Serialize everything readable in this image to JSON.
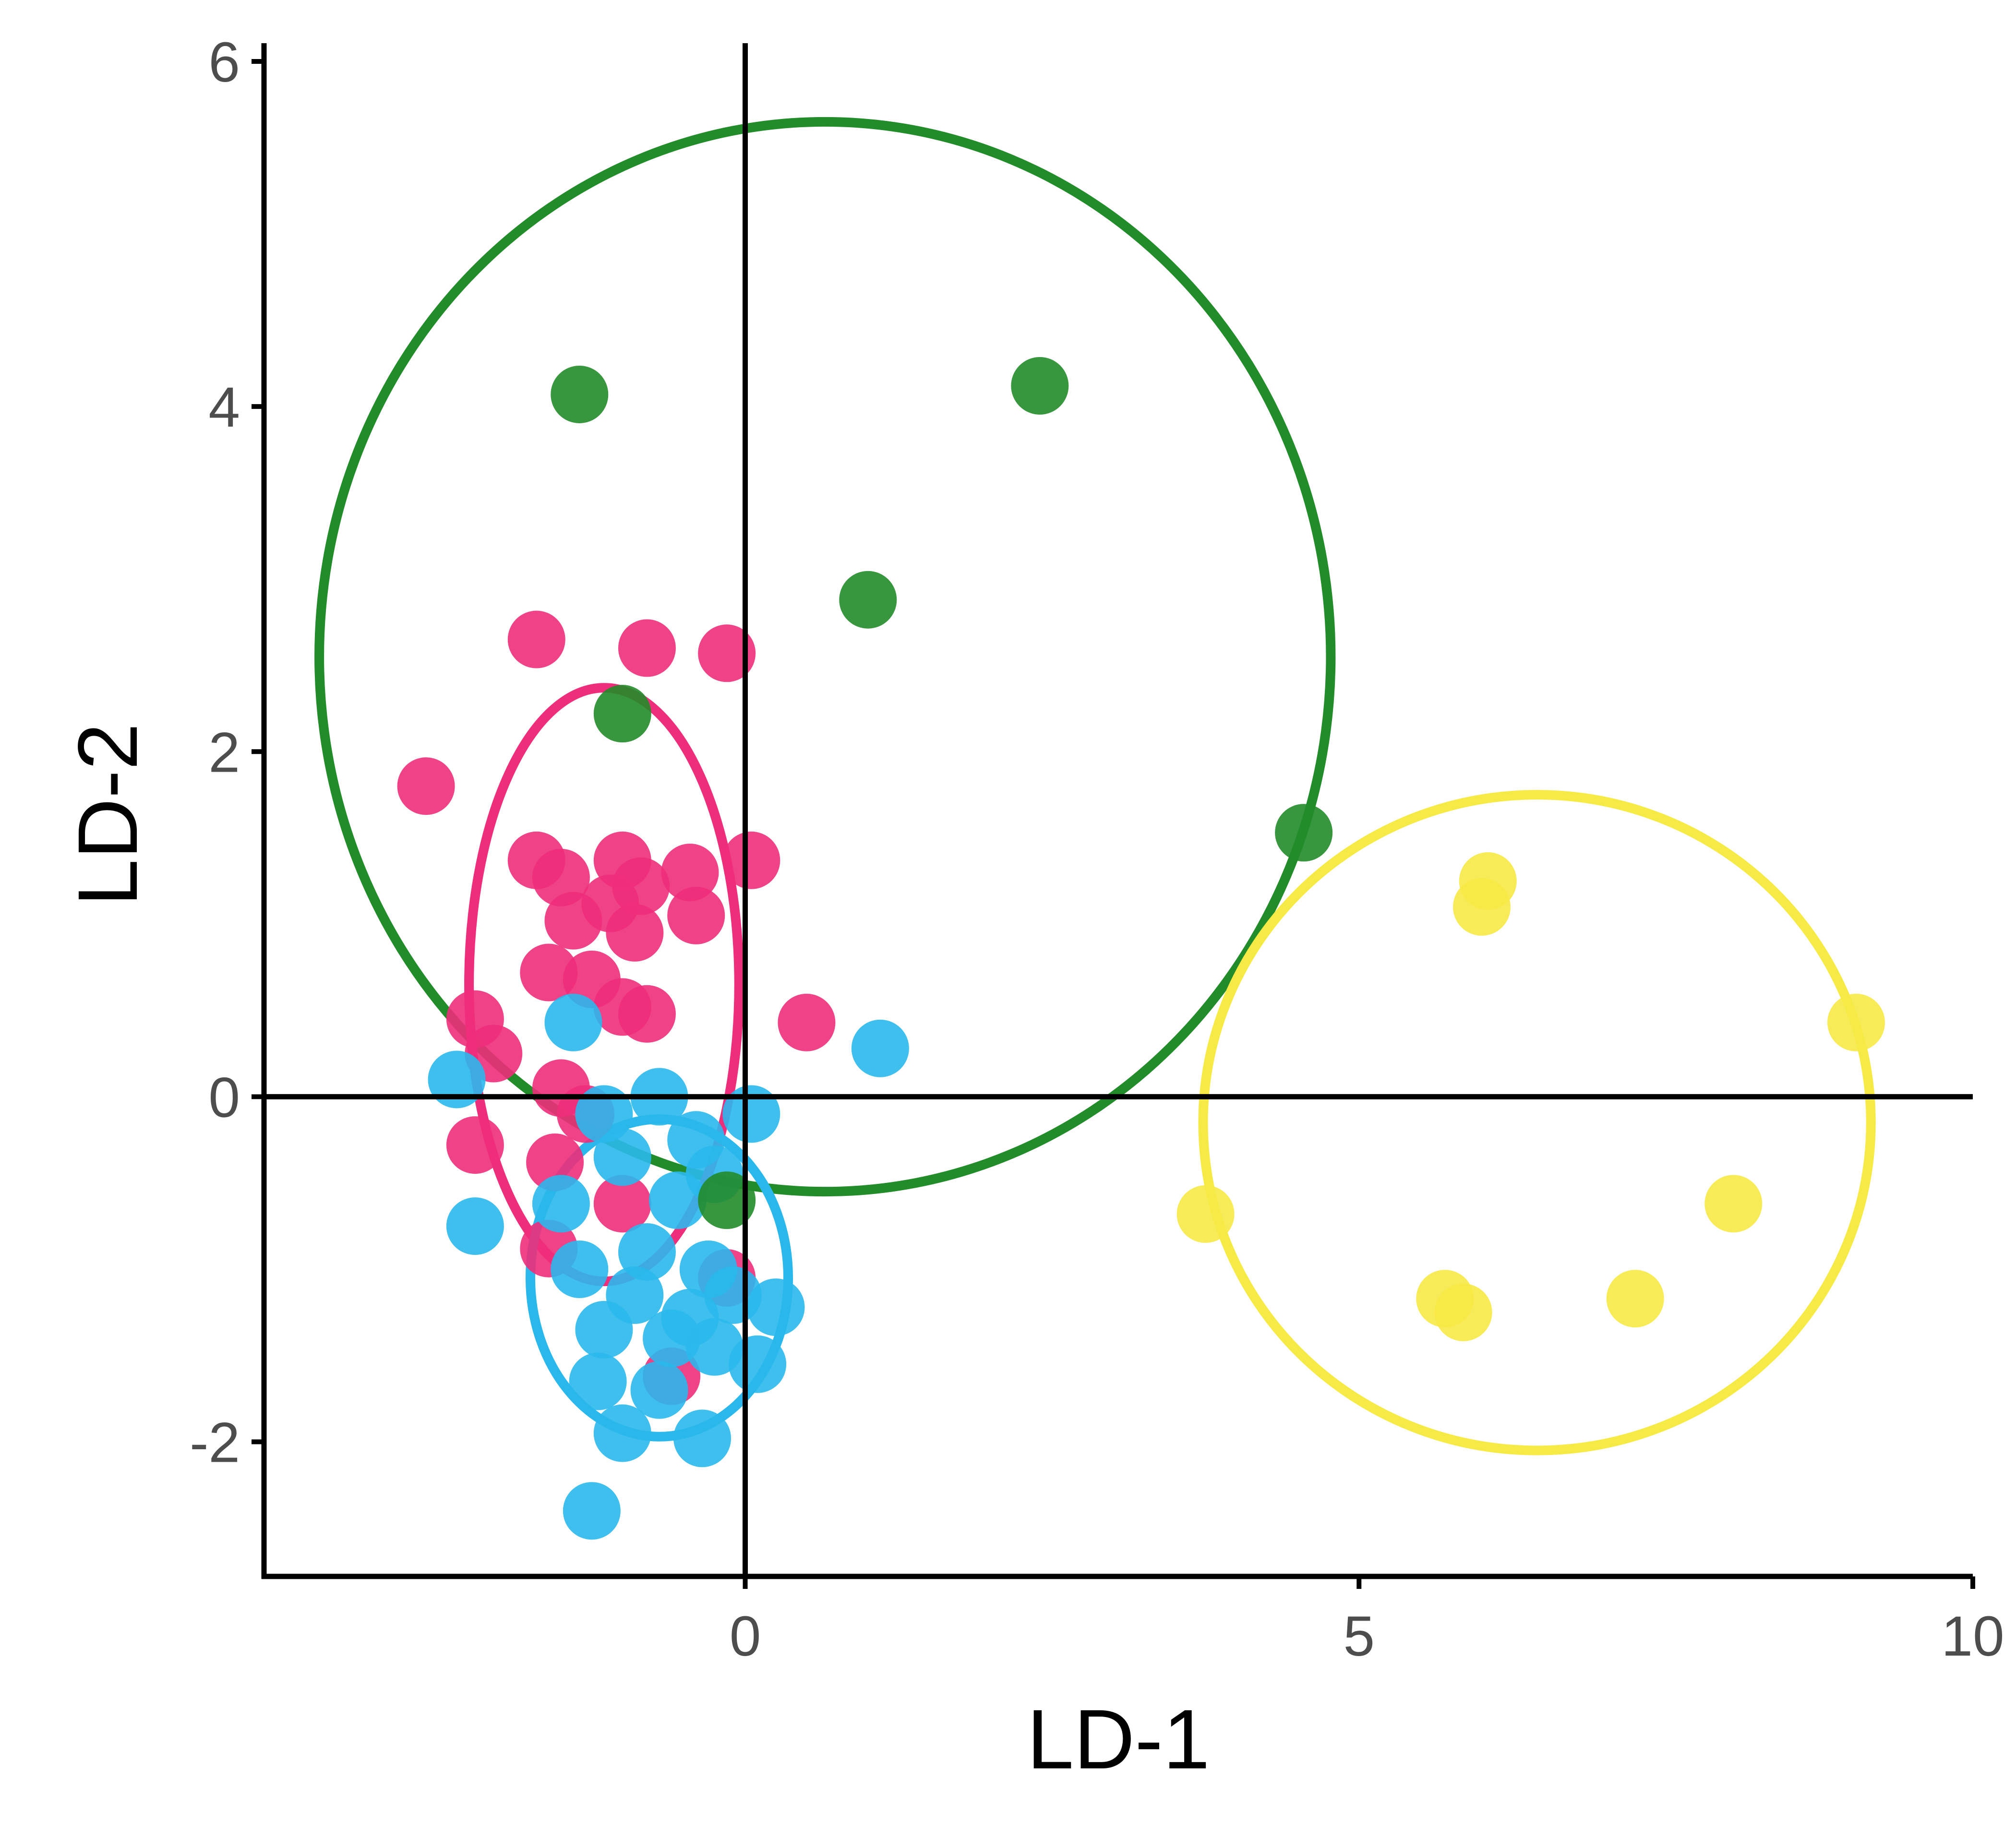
{
  "chart_data": {
    "type": "scatter",
    "xlabel": "LD-1",
    "ylabel": "LD-2",
    "xlim": [
      -3.92,
      10.0
    ],
    "ylim": [
      -2.78,
      6.05
    ],
    "x_ticks": [
      0,
      5,
      10
    ],
    "y_ticks": [
      6,
      4,
      2,
      0,
      -2
    ],
    "x_tick_labels": [
      "0",
      "5",
      "10"
    ],
    "y_tick_labels": [
      "6",
      "4",
      "2",
      "0",
      "-2"
    ],
    "reference_lines": {
      "x": 0,
      "y": 0
    },
    "grid": false,
    "legend": "none",
    "groups": [
      {
        "color": "#EE2E7A",
        "points": [
          [
            -1.7,
            2.65
          ],
          [
            -0.8,
            2.6
          ],
          [
            -0.15,
            2.57
          ],
          [
            -2.6,
            1.8
          ],
          [
            -1.7,
            1.37
          ],
          [
            -1.0,
            1.37
          ],
          [
            0.05,
            1.37
          ],
          [
            -0.45,
            1.3
          ],
          [
            -1.5,
            1.27
          ],
          [
            -0.85,
            1.22
          ],
          [
            -1.1,
            1.12
          ],
          [
            -0.4,
            1.05
          ],
          [
            -1.4,
            1.02
          ],
          [
            -0.9,
            0.95
          ],
          [
            -1.6,
            0.72
          ],
          [
            -1.25,
            0.68
          ],
          [
            -0.8,
            0.48
          ],
          [
            -1.0,
            0.52
          ],
          [
            0.5,
            0.43
          ],
          [
            -2.2,
            0.45
          ],
          [
            -2.05,
            0.25
          ],
          [
            -1.5,
            0.05
          ],
          [
            -1.3,
            -0.1
          ],
          [
            -2.2,
            -0.28
          ],
          [
            -1.55,
            -0.38
          ],
          [
            -1.0,
            -0.62
          ],
          [
            -1.6,
            -0.88
          ],
          [
            -0.15,
            -1.05
          ],
          [
            -0.6,
            -1.62
          ]
        ]
      },
      {
        "color": "#2AB8EC",
        "points": [
          [
            1.1,
            0.28
          ],
          [
            -1.4,
            0.43
          ],
          [
            -2.35,
            0.1
          ],
          [
            0.05,
            -0.1
          ],
          [
            -0.7,
            0.0
          ],
          [
            -1.15,
            -0.1
          ],
          [
            -0.4,
            -0.25
          ],
          [
            -1.0,
            -0.35
          ],
          [
            -0.25,
            -0.45
          ],
          [
            -0.55,
            -0.6
          ],
          [
            -1.5,
            -0.62
          ],
          [
            -2.2,
            -0.75
          ],
          [
            -1.35,
            -1.0
          ],
          [
            -0.8,
            -0.9
          ],
          [
            -0.3,
            -1.0
          ],
          [
            -0.9,
            -1.15
          ],
          [
            -0.1,
            -1.15
          ],
          [
            0.25,
            -1.22
          ],
          [
            -0.45,
            -1.28
          ],
          [
            -1.15,
            -1.35
          ],
          [
            -0.6,
            -1.4
          ],
          [
            -0.25,
            -1.45
          ],
          [
            0.1,
            -1.55
          ],
          [
            -1.2,
            -1.65
          ],
          [
            -0.7,
            -1.7
          ],
          [
            -1.0,
            -1.95
          ],
          [
            -0.35,
            -1.98
          ],
          [
            -1.25,
            -2.4
          ]
        ]
      },
      {
        "color": "#228B2A",
        "points": [
          [
            -1.35,
            4.07
          ],
          [
            2.4,
            4.12
          ],
          [
            1.0,
            2.88
          ],
          [
            -1.0,
            2.22
          ],
          [
            4.55,
            1.53
          ],
          [
            -0.15,
            -0.6
          ]
        ]
      },
      {
        "color": "#F6EA46",
        "points": [
          [
            6.05,
            1.25
          ],
          [
            6.0,
            1.1
          ],
          [
            9.05,
            0.43
          ],
          [
            3.75,
            -0.68
          ],
          [
            8.05,
            -0.62
          ],
          [
            5.7,
            -1.17
          ],
          [
            5.85,
            -1.25
          ],
          [
            7.25,
            -1.17
          ]
        ]
      }
    ],
    "ellipses": [
      {
        "color": "#228B2A",
        "cx": 0.65,
        "cy": 2.55,
        "rx": 4.12,
        "ry": 3.1,
        "angle": 0
      },
      {
        "color": "#EE2E7A",
        "cx": -1.15,
        "cy": 0.65,
        "rx": 1.1,
        "ry": 1.72,
        "angle": 0
      },
      {
        "color": "#2AB8EC",
        "cx": -0.7,
        "cy": -1.05,
        "rx": 1.05,
        "ry": 0.92,
        "angle": 0
      },
      {
        "color": "#F6EA46",
        "cx": 6.45,
        "cy": -0.15,
        "rx": 2.72,
        "ry": 1.9,
        "angle": 0
      }
    ]
  }
}
